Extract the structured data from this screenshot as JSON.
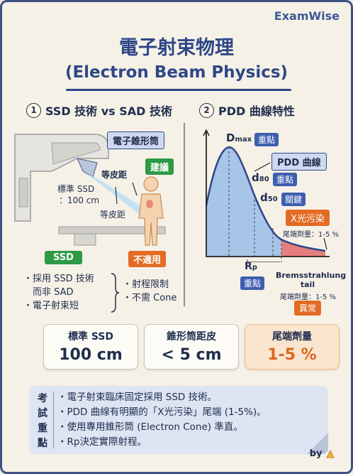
{
  "brand": "ExamWise",
  "title": "電子射束物理",
  "subtitle": "(Electron Beam Physics)",
  "section1": {
    "number": "1",
    "heading": "SSD 技術 vs SAD 技術",
    "labels": {
      "cone": "電子錐形筒",
      "recommend": "建議",
      "equal_skin_1": "等皮距",
      "standard_ssd": "標準 SSD",
      "ssd_value": "：100 cm",
      "equal_skin_2": "等皮距"
    },
    "ssd_tag": "SSD",
    "not_applicable_tag": "不適用",
    "left_list": [
      "・採用 SSD 技術",
      "　而非 SAD",
      "・電子射束短"
    ],
    "right_list": [
      "・射程限制",
      "・不需 Cone"
    ]
  },
  "section2": {
    "number": "2",
    "heading": "PDD 曲線特性",
    "labels": {
      "dmax": "D",
      "dmax_sub": "max",
      "key1": "重點",
      "pdd_curve": "PDD 曲線",
      "d80": "d",
      "d80_sub": "80",
      "key2": "重點",
      "d50": "d",
      "d50_sub": "50",
      "key3": "關鍵",
      "xray": "X光污染",
      "tail_dose_1": "尾端劑量：1-5 %",
      "rp": "R",
      "rp_sub": "p",
      "key4": "重點",
      "brems_1": "Bremsstrahlung",
      "brems_2": "tail",
      "tail_dose_2": "尾端劑量：1-5 %",
      "abnormal": "異常"
    }
  },
  "cards": [
    {
      "label": "標準 SSD",
      "value": "100 cm"
    },
    {
      "label": "錐形筒距皮",
      "value": "< 5 cm"
    },
    {
      "label": "尾端劑量",
      "value": "1-5 %"
    }
  ],
  "notes": {
    "label": [
      "考",
      "試",
      "重",
      "點"
    ],
    "items": [
      "・電子射束臨床固定採用 SSD 技術。",
      "・PDD 曲線有明顯的「X光污染」尾端 (1-5%)。",
      "・使用專用錐形筒 (Electron Cone) 準直。",
      "・Rp決定實際射程。"
    ]
  },
  "by": "by",
  "colors": {
    "primary": "#2f4787",
    "green": "#2d9a45",
    "orange": "#e36b25",
    "curve_fill": "#9fc0e6",
    "tail_fill": "#e26a6a"
  }
}
